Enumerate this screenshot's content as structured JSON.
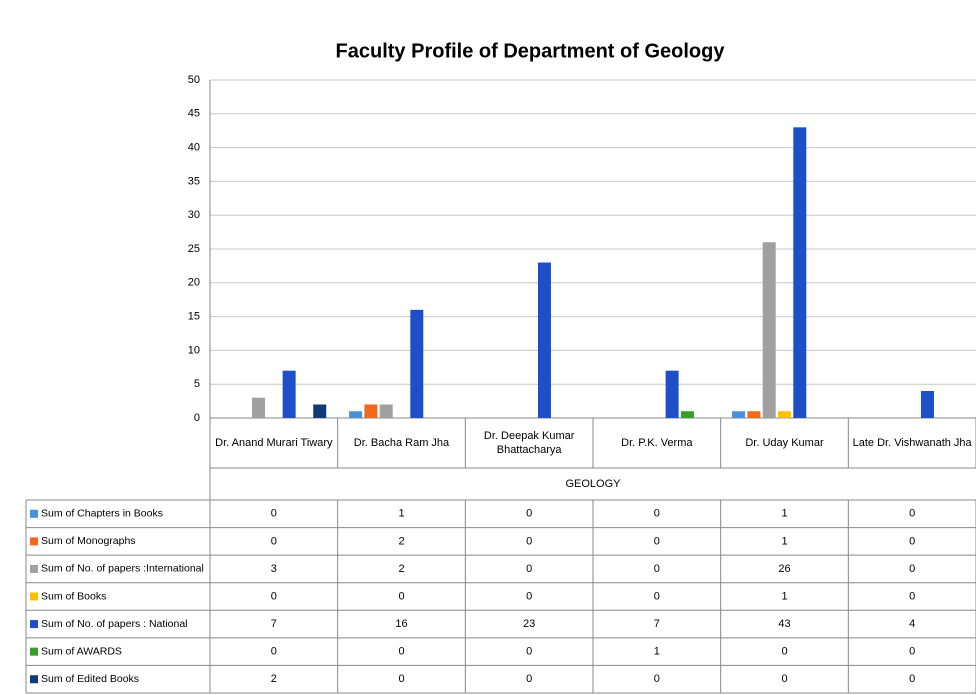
{
  "chart_data": {
    "type": "bar",
    "title": "Faculty Profile of Department of Geology",
    "group_label": "GEOLOGY",
    "categories": [
      "Dr. Anand Murari Tiwary",
      "Dr. Bacha Ram Jha",
      "Dr. Deepak Kumar Bhattacharya",
      "Dr. P.K. Verma",
      "Dr. Uday Kumar",
      "Late Dr. Vishwanath Jha"
    ],
    "series": [
      {
        "name": "Sum of Chapters in Books",
        "color": "#4a8fd8",
        "values": [
          0,
          1,
          0,
          0,
          1,
          0
        ]
      },
      {
        "name": "Sum of Monographs",
        "color": "#f0691c",
        "values": [
          0,
          2,
          0,
          0,
          1,
          0
        ]
      },
      {
        "name": "Sum of No. of papers :International",
        "color": "#a0a0a0",
        "values": [
          3,
          2,
          0,
          0,
          26,
          0
        ]
      },
      {
        "name": "Sum of Books",
        "color": "#ffc000",
        "values": [
          0,
          0,
          0,
          0,
          1,
          0
        ]
      },
      {
        "name": "Sum of No. of papers : National",
        "color": "#1f4fc8",
        "values": [
          7,
          16,
          23,
          7,
          43,
          4
        ]
      },
      {
        "name": "Sum of AWARDS",
        "color": "#3a9e2a",
        "values": [
          0,
          0,
          0,
          1,
          0,
          0
        ]
      },
      {
        "name": "Sum of Edited Books",
        "color": "#0f3a78",
        "values": [
          2,
          0,
          0,
          0,
          0,
          0
        ]
      }
    ],
    "ylim": [
      0,
      50
    ],
    "yticks": [
      0,
      5,
      10,
      15,
      20,
      25,
      30,
      35,
      40,
      45,
      50
    ],
    "grid": true
  }
}
